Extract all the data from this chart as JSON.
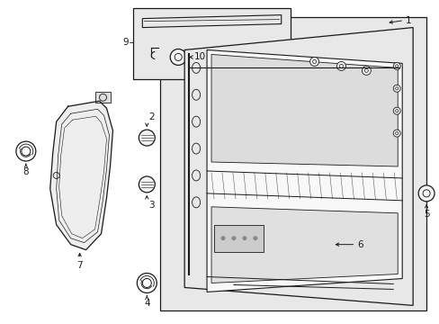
{
  "bg_color": "#ffffff",
  "line_color": "#1a1a1a",
  "gray_fill": "#e8e8e8",
  "figsize": [
    4.89,
    3.6
  ],
  "dpi": 100,
  "font_size": 7.5
}
